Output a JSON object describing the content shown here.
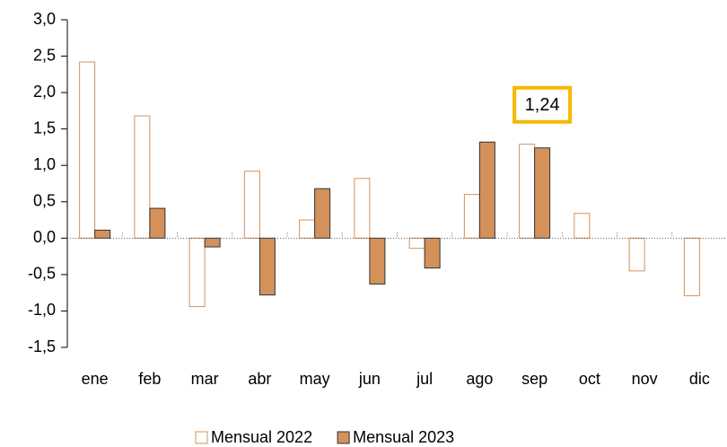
{
  "chart_data": {
    "type": "bar",
    "categories": [
      "ene",
      "feb",
      "mar",
      "abr",
      "may",
      "jun",
      "jul",
      "ago",
      "sep",
      "oct",
      "nov",
      "dic"
    ],
    "series": [
      {
        "name": "Mensual 2022",
        "color": "#ffffff",
        "stroke": "#d4915a",
        "values": [
          2.42,
          1.68,
          -0.94,
          0.92,
          0.25,
          0.82,
          -0.14,
          0.6,
          1.29,
          0.34,
          -0.45,
          -0.79
        ]
      },
      {
        "name": "Mensual 2023",
        "color": "#d4915a",
        "stroke": "#333333",
        "values": [
          0.11,
          0.41,
          -0.12,
          -0.78,
          0.68,
          -0.63,
          -0.41,
          1.32,
          1.24,
          null,
          null,
          null
        ],
        "value_labels": [
          null,
          null,
          null,
          null,
          null,
          null,
          null,
          null,
          "1,24",
          null,
          null,
          null
        ]
      }
    ],
    "ylim": [
      -1.5,
      3.0
    ],
    "yticks": [
      {
        "value": -1.5,
        "label": "-1,5"
      },
      {
        "value": -1.0,
        "label": "-1,0"
      },
      {
        "value": -0.5,
        "label": "-0,5"
      },
      {
        "value": 0.0,
        "label": "0,0"
      },
      {
        "value": 0.5,
        "label": "0,5"
      },
      {
        "value": 1.0,
        "label": "1,0"
      },
      {
        "value": 1.5,
        "label": "1,5"
      },
      {
        "value": 2.0,
        "label": "2,0"
      },
      {
        "value": 2.5,
        "label": "2,5"
      },
      {
        "value": 3.0,
        "label": "3,0"
      }
    ],
    "grid": false,
    "legend": "bottom"
  }
}
